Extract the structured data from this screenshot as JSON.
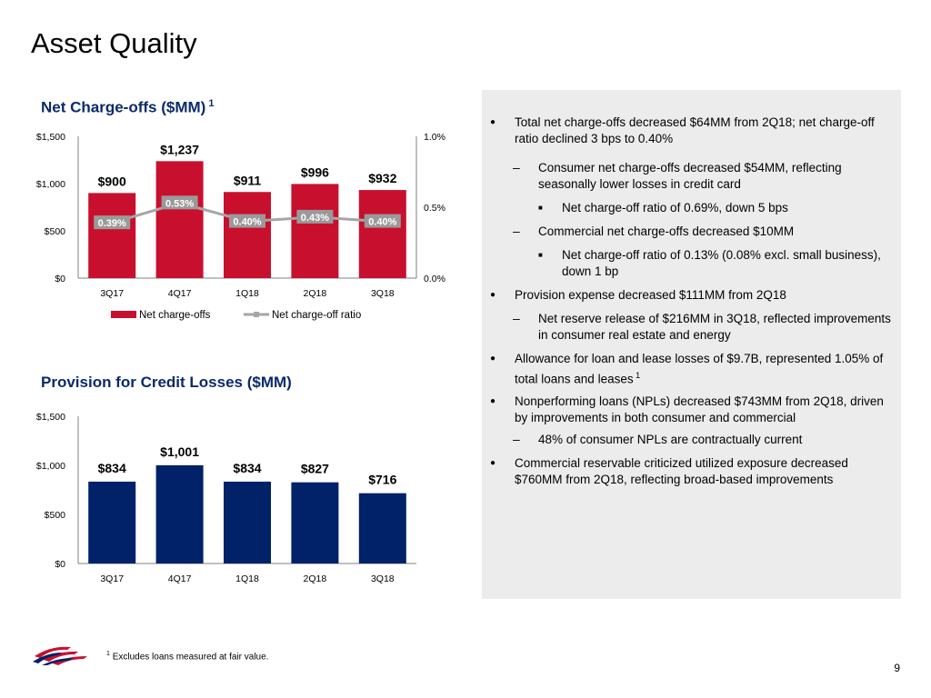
{
  "page": {
    "title": "Asset Quality",
    "page_number": "9",
    "footnote_marker": "1",
    "footnote": "Excludes loans measured at fair value.",
    "colors": {
      "red": "#c8102e",
      "navy": "#012169",
      "panel": "#ececec",
      "ratio_label_bg": "#9a9a9a",
      "title_blue": "#0a2a6b"
    }
  },
  "chart_data": [
    {
      "type": "bar",
      "title": "Net Charge-offs ($MM)",
      "title_footnote": "1",
      "categories": [
        "3Q17",
        "4Q17",
        "1Q18",
        "2Q18",
        "3Q18"
      ],
      "series": [
        {
          "name": "Net charge-offs",
          "type": "bar",
          "axis": "left",
          "color": "#c8102e",
          "values": [
            900,
            1237,
            911,
            996,
            932
          ],
          "labels": [
            "$900",
            "$1,237",
            "$911",
            "$996",
            "$932"
          ]
        },
        {
          "name": "Net charge-off ratio",
          "type": "line",
          "axis": "right",
          "color": "#a6a6a6",
          "values": [
            0.39,
            0.53,
            0.4,
            0.43,
            0.4
          ],
          "labels": [
            "0.39%",
            "0.53%",
            "0.40%",
            "0.43%",
            "0.40%"
          ]
        }
      ],
      "ylim": [
        0,
        1500
      ],
      "yticks": [
        "$0",
        "$500",
        "$1,000",
        "$1,500"
      ],
      "y2lim": [
        0,
        1.0
      ],
      "y2ticks": [
        "0.0%",
        "0.5%",
        "1.0%"
      ],
      "legend_position": "bottom"
    },
    {
      "type": "bar",
      "title": "Provision for Credit Losses ($MM)",
      "categories": [
        "3Q17",
        "4Q17",
        "1Q18",
        "2Q18",
        "3Q18"
      ],
      "series": [
        {
          "type": "bar",
          "color": "#012169",
          "values": [
            834,
            1001,
            834,
            827,
            716
          ],
          "labels": [
            "$834",
            "$1,001",
            "$834",
            "$827",
            "$716"
          ]
        }
      ],
      "ylim": [
        0,
        1500
      ],
      "yticks": [
        "$0",
        "$500",
        "$1,000",
        "$1,500"
      ]
    }
  ],
  "bullets": [
    {
      "level": 1,
      "text": "Total net charge-offs decreased $64MM from 2Q18; net charge-off ratio declined 3 bps to 0.40%"
    },
    {
      "level": 2,
      "text": "Consumer net charge-offs decreased $54MM, reflecting seasonally lower losses in credit card"
    },
    {
      "level": 3,
      "text": "Net charge-off ratio of 0.69%, down 5 bps"
    },
    {
      "level": 2,
      "text": "Commercial net charge-offs decreased $10MM"
    },
    {
      "level": 3,
      "text": "Net charge-off ratio of 0.13% (0.08% excl. small business), down 1 bp"
    },
    {
      "level": 1,
      "text": "Provision expense decreased $111MM from 2Q18"
    },
    {
      "level": 2,
      "text": "Net reserve release of $216MM in 3Q18, reflected improvements in consumer real estate and energy"
    },
    {
      "level": 1,
      "text": "Allowance for loan and lease losses of $9.7B, represented 1.05% of total loans and leases",
      "sup": "1"
    },
    {
      "level": 1,
      "text": "Nonperforming loans (NPLs) decreased $743MM from 2Q18, driven by improvements in both consumer and commercial"
    },
    {
      "level": 2,
      "text": "48% of consumer NPLs are contractually current"
    },
    {
      "level": 1,
      "text": "Commercial reservable criticized utilized exposure decreased $760MM from 2Q18, reflecting broad-based improvements"
    }
  ]
}
